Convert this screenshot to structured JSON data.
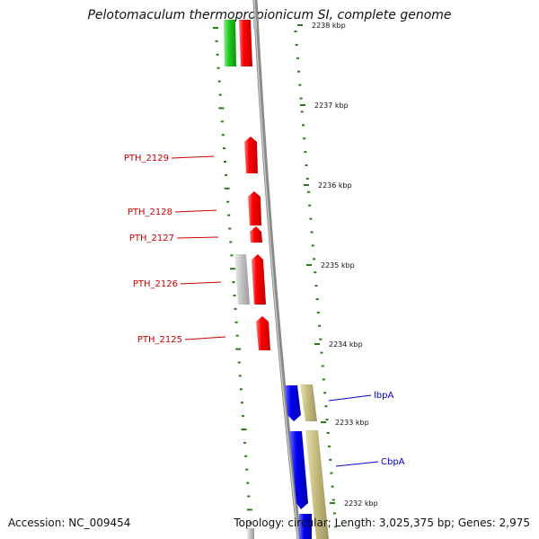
{
  "header": {
    "title": "Pelotomaculum thermopropionicum SI, complete genome"
  },
  "footer": {
    "accession": "Accession: NC_009454",
    "summary": "Topology: circular; Length: 3,025,375 bp; Genes: 2,975"
  },
  "map": {
    "kbp_ticks": [
      "2238 kbp",
      "2237 kbp",
      "2236 kbp",
      "2235 kbp",
      "2234 kbp",
      "2233 kbp",
      "2232 kbp"
    ],
    "left_genes": [
      {
        "label": "PTH_2129",
        "color": "#cc0000"
      },
      {
        "label": "PTH_2128",
        "color": "#cc0000"
      },
      {
        "label": "PTH_2127",
        "color": "#cc0000"
      },
      {
        "label": "PTH_2126",
        "color": "#cc0000"
      },
      {
        "label": "PTH_2125",
        "color": "#cc0000"
      }
    ],
    "right_genes": [
      {
        "label": "lbpA",
        "color": "#0000cc"
      },
      {
        "label": "CbpA",
        "color": "#0000cc"
      }
    ],
    "colors": {
      "red_feature": "#ff0000",
      "blue_feature": "#0000ee",
      "khaki_feature": "#c8bf80",
      "gray_feature": "#c4c4c4",
      "green_feature": "#22cc22",
      "backbone": "#8a8a8a",
      "tick": "#2a7a1a"
    }
  }
}
